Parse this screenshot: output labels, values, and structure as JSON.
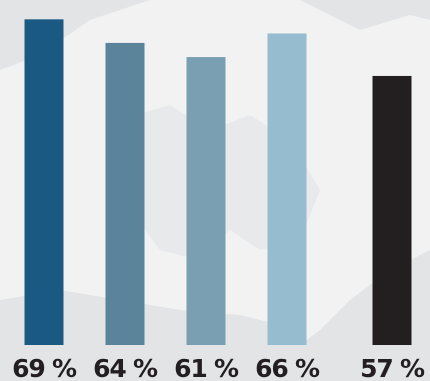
{
  "chart_data": {
    "type": "bar",
    "categories": [
      "",
      "",
      "",
      "",
      ""
    ],
    "values": [
      69,
      64,
      61,
      66,
      57
    ],
    "value_labels": [
      "69 %",
      "64 %",
      "61 %",
      "66 %",
      "57 %"
    ],
    "bar_colors": [
      "#1a5a82",
      "#5b849c",
      "#7a9fb2",
      "#96bccf",
      "#231f20"
    ],
    "title": "",
    "xlabel": "",
    "ylabel": "",
    "grid": false,
    "legend": "none"
  },
  "colors": {
    "label_text": "#231f20",
    "map_background": "#e3e4e6",
    "map_land": "#f2f2f3"
  }
}
